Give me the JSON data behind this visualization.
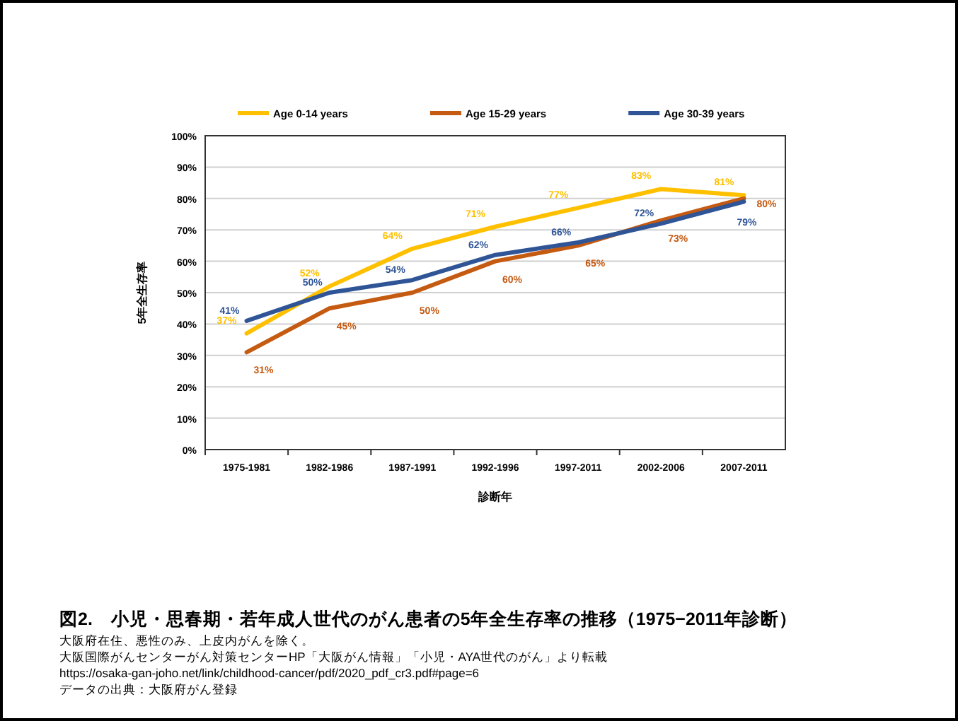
{
  "chart_data": {
    "type": "line",
    "title": "図2.　小児・思春期・若年成人世代のがん患者の5年全生存率の推移（1975−2011年診断）",
    "xlabel": "診断年",
    "ylabel": "5年全生存率",
    "categories": [
      "1975-1981",
      "1982-1986",
      "1987-1991",
      "1992-1996",
      "1997-2011",
      "2002-2006",
      "2007-2011"
    ],
    "series": [
      {
        "name": "Age 0-14 years",
        "color": "#ffc000",
        "values": [
          37,
          52,
          64,
          71,
          77,
          83,
          81
        ],
        "value_labels": [
          "37%",
          "52%",
          "64%",
          "71%",
          "77%",
          "83%",
          "81%"
        ]
      },
      {
        "name": "Age 15-29 years",
        "color": "#c55a11",
        "values": [
          31,
          45,
          50,
          60,
          65,
          73,
          80
        ],
        "value_labels": [
          "31%",
          "45%",
          "50%",
          "60%",
          "65%",
          "73%",
          "80%"
        ]
      },
      {
        "name": "Age 30-39 years",
        "color": "#2f5597",
        "values": [
          41,
          50,
          54,
          62,
          66,
          72,
          79
        ],
        "value_labels": [
          "41%",
          "50%",
          "54%",
          "62%",
          "66%",
          "72%",
          "79%"
        ]
      }
    ],
    "ylim": [
      0,
      100
    ],
    "yticks": [
      {
        "value": 0,
        "label": "0%"
      },
      {
        "value": 10,
        "label": "10%"
      },
      {
        "value": 20,
        "label": "20%"
      },
      {
        "value": 30,
        "label": "30%"
      },
      {
        "value": 40,
        "label": "40%"
      },
      {
        "value": 50,
        "label": "50%"
      },
      {
        "value": 60,
        "label": "60%"
      },
      {
        "value": 70,
        "label": "70%"
      },
      {
        "value": 80,
        "label": "80%"
      },
      {
        "value": 90,
        "label": "90%"
      },
      {
        "value": 100,
        "label": "100%"
      }
    ],
    "grid": "y",
    "legend": "top",
    "marker": "none",
    "line_style": "solid",
    "annotations": [
      "大阪府在住、悪性のみ、上皮内がんを除く。",
      "大阪国際がんセンターがん対策センターHP「大阪がん情報」「小児・AYA世代のがん」より転載",
      "https://osaka-gan-joho.net/link/childhood-cancer/pdf/2020_pdf_cr3.pdf#page=6",
      "データの出典：大阪府がん登録"
    ]
  }
}
